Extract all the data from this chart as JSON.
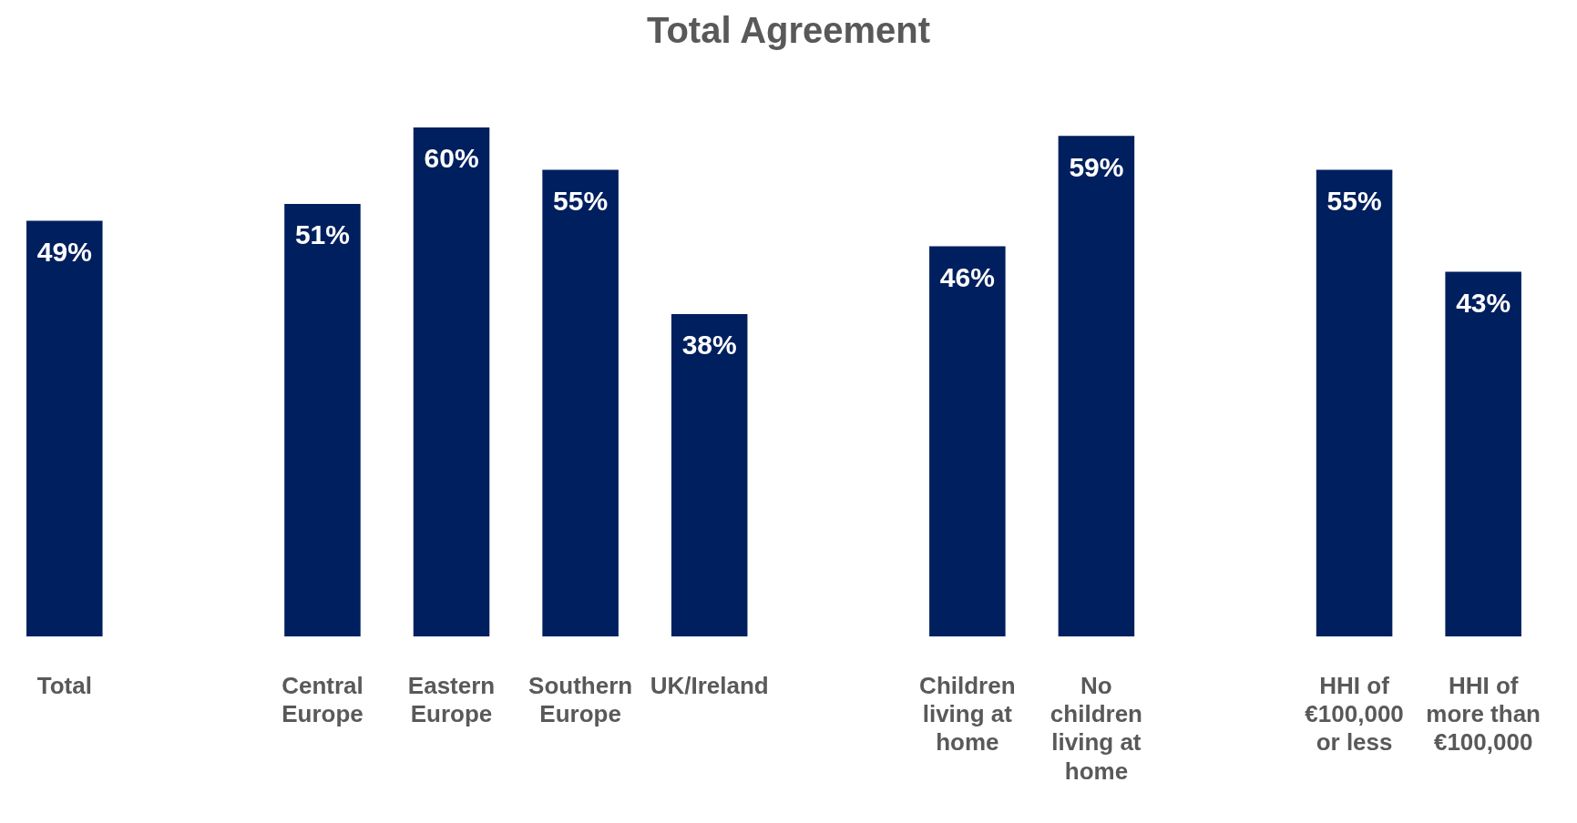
{
  "chart_data": {
    "type": "bar",
    "title": "Total Agreement",
    "categories": [
      "Total",
      null,
      "Central Europe",
      "Eastern Europe",
      "Southern Europe",
      "UK/Ireland",
      null,
      "Children living at home",
      "No children living at home",
      null,
      "HHI of €100,000 or less",
      "HHI of more than €100,000"
    ],
    "values": [
      49,
      null,
      51,
      60,
      55,
      38,
      null,
      46,
      59,
      null,
      55,
      43
    ],
    "value_labels": [
      "49%",
      null,
      "51%",
      "60%",
      "55%",
      "38%",
      null,
      "46%",
      "59%",
      null,
      "55%",
      "43%"
    ],
    "color": "#001f5f",
    "grid": false,
    "legend": false
  }
}
